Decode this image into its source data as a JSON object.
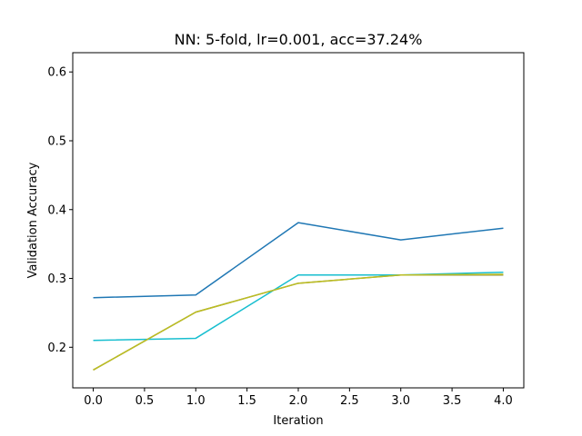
{
  "chart_data": {
    "type": "line",
    "title": "NN: 5-fold, lr=0.001, acc=37.24%",
    "xlabel": "Iteration",
    "ylabel": "Validation Accuracy",
    "x": [
      0,
      1,
      2,
      3,
      4
    ],
    "xlim": [
      -0.2,
      4.2
    ],
    "ylim": [
      0.141,
      0.628
    ],
    "xticks": [
      "0.0",
      "0.5",
      "1.0",
      "1.5",
      "2.0",
      "2.5",
      "3.0",
      "3.5",
      "4.0"
    ],
    "yticks": [
      "0.2",
      "0.3",
      "0.4",
      "0.5",
      "0.6"
    ],
    "grid": false,
    "series": [
      {
        "color": "#1f77b4",
        "values": [
          0.272,
          0.276,
          0.381,
          0.356,
          0.373
        ]
      },
      {
        "color": "#8c8c3c",
        "values": [
          0.167,
          0.251,
          0.293,
          0.305,
          0.305
        ]
      },
      {
        "color": "#17becf",
        "values": [
          0.21,
          0.213,
          0.305,
          0.305,
          0.309
        ]
      },
      {
        "color": "#bcbd22",
        "values": [
          0.167,
          0.251,
          0.293,
          0.305,
          0.306
        ]
      }
    ]
  }
}
